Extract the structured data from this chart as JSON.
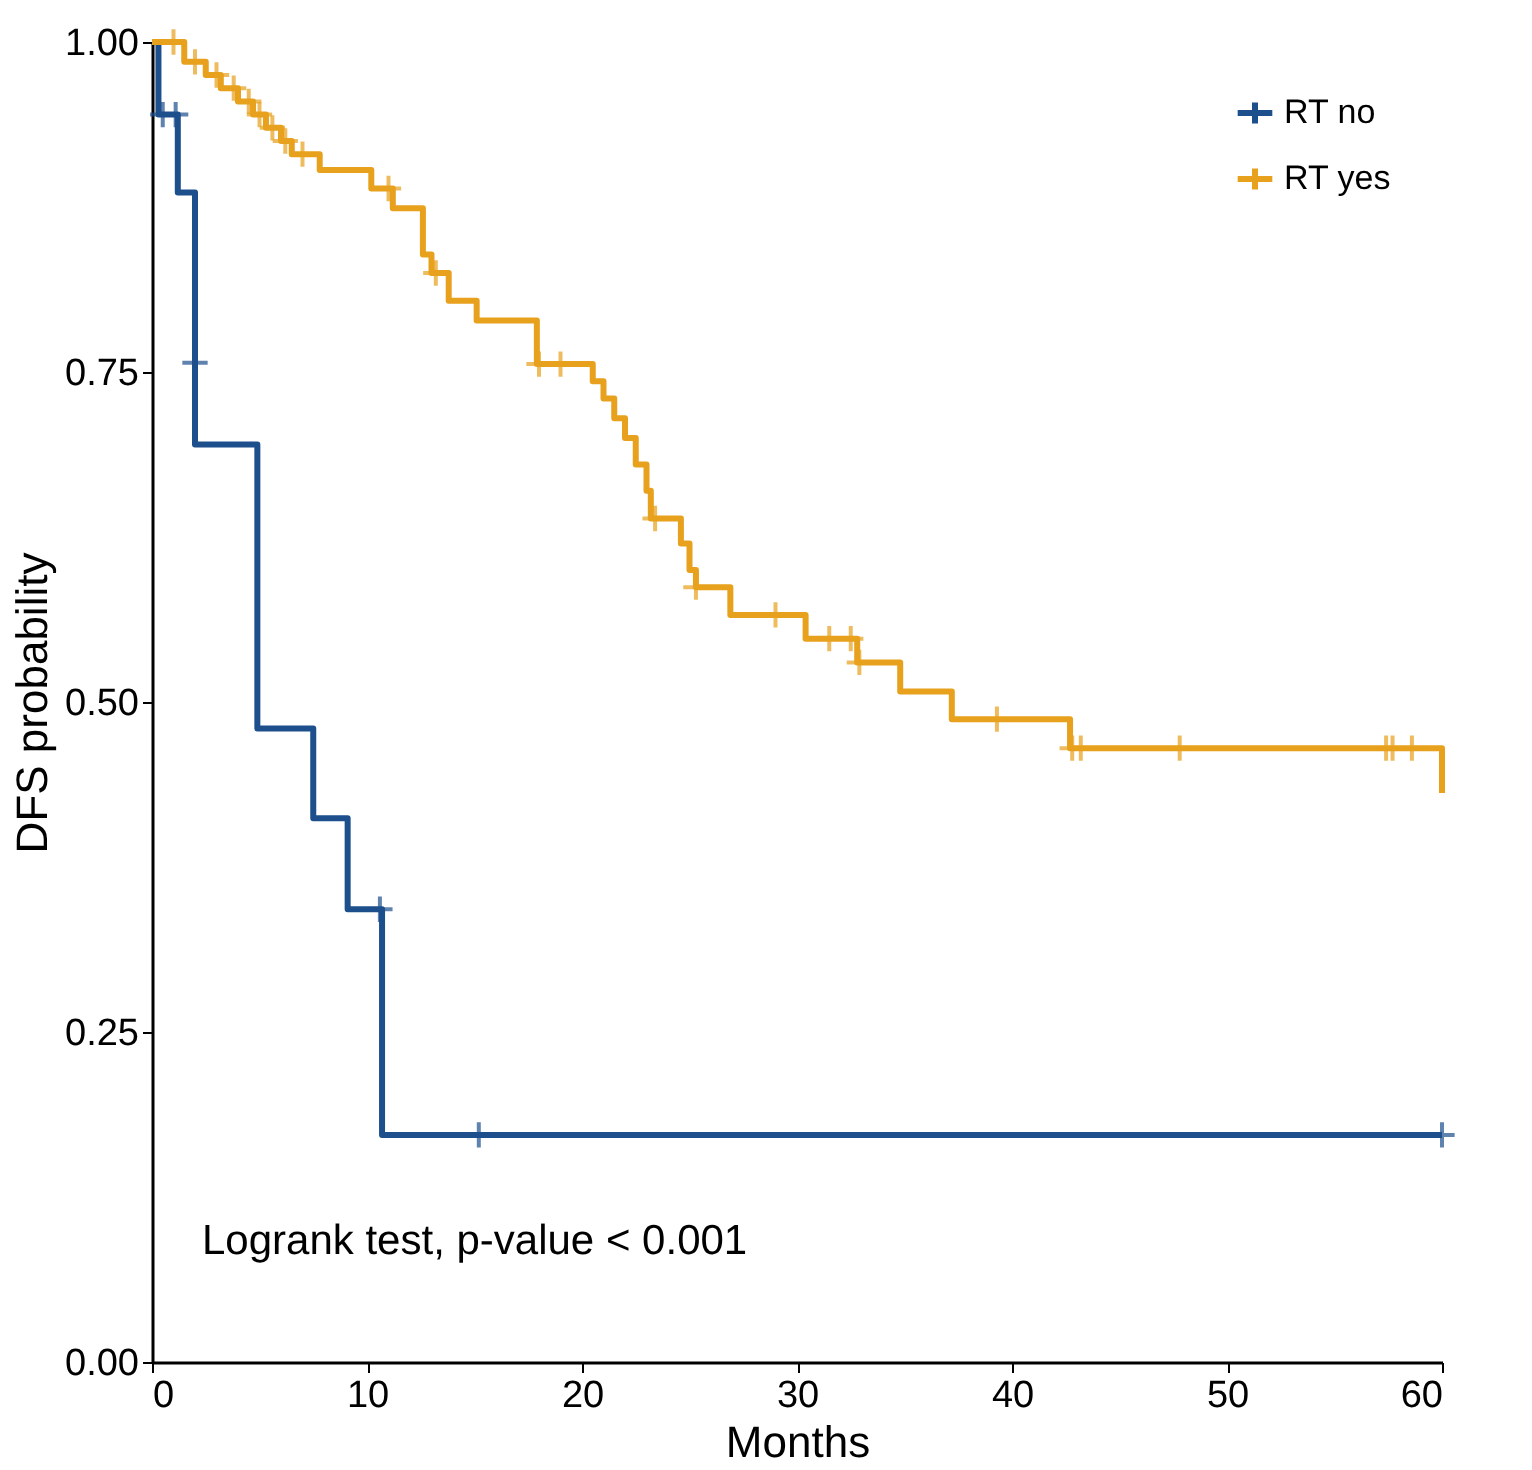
{
  "chart_data": {
    "type": "step",
    "xlabel": "Months",
    "ylabel": "DFS probability",
    "annotations": [
      "Logrank test, p-value < 0.001"
    ],
    "xlim": [
      0,
      60
    ],
    "ylim": [
      0,
      1
    ],
    "xticks": [
      0,
      10,
      20,
      30,
      40,
      50,
      60
    ],
    "yticks": [
      {
        "value": 0,
        "label": "0.00"
      },
      {
        "value": 0.25,
        "label": "0.25"
      },
      {
        "value": 0.5,
        "label": "0.50"
      },
      {
        "value": 0.75,
        "label": "0.75"
      },
      {
        "value": 1,
        "label": "1.00"
      }
    ],
    "legend": "top right",
    "series": [
      {
        "name": "RT no",
        "color": "#1c4f8c",
        "x": [
          0,
          0.3,
          1.2,
          2.0,
          4.9,
          7.5,
          9.1,
          10.7,
          60
        ],
        "values": [
          1,
          0.945,
          0.886,
          0.695,
          0.48,
          0.412,
          0.343,
          0.172,
          0.172
        ]
      },
      {
        "name": "RT yes",
        "color": "#e8a11c",
        "x": [
          0,
          1.5,
          2.5,
          3.2,
          4,
          4.7,
          5.3,
          6,
          6.5,
          7.8,
          10.2,
          11.2,
          12.6,
          13,
          13.8,
          15.1,
          17.9,
          20.5,
          21,
          21.5,
          22,
          22.5,
          23,
          23.2,
          24.6,
          25,
          25.3,
          26.9,
          30.4,
          32.8,
          34.8,
          37.2,
          42.7,
          60
        ],
        "values": [
          1,
          0.985,
          0.975,
          0.965,
          0.955,
          0.945,
          0.935,
          0.925,
          0.915,
          0.903,
          0.889,
          0.874,
          0.839,
          0.825,
          0.804,
          0.789,
          0.756,
          0.743,
          0.73,
          0.715,
          0.7,
          0.68,
          0.66,
          0.639,
          0.62,
          0.6,
          0.587,
          0.566,
          0.548,
          0.53,
          0.508,
          0.487,
          0.465,
          0.431
        ]
      },
      {
        "color": "#1c4f8c",
        "type": "scatter",
        "marker": "cross",
        "x": [
          0.5,
          1.1,
          2.0,
          10.6,
          15.2,
          60
        ],
        "values": [
          0.945,
          0.945,
          0.757,
          0.343,
          0.172,
          0.172
        ]
      },
      {
        "color": "#e8a11c",
        "type": "scatter",
        "marker": "cross",
        "x": [
          1,
          2,
          3,
          3.8,
          4.5,
          5,
          5.6,
          6.2,
          7,
          11,
          13.2,
          18,
          19,
          23.4,
          25.3,
          29,
          31.5,
          32.5,
          32.9,
          39.3,
          42.8,
          43.2,
          47.8,
          57.4,
          57.7,
          58.6
        ],
        "values": [
          1,
          0.985,
          0.975,
          0.965,
          0.955,
          0.945,
          0.935,
          0.925,
          0.915,
          0.889,
          0.825,
          0.756,
          0.756,
          0.639,
          0.587,
          0.566,
          0.548,
          0.548,
          0.53,
          0.487,
          0.465,
          0.465,
          0.465,
          0.465,
          0.465,
          0.465
        ]
      }
    ]
  }
}
